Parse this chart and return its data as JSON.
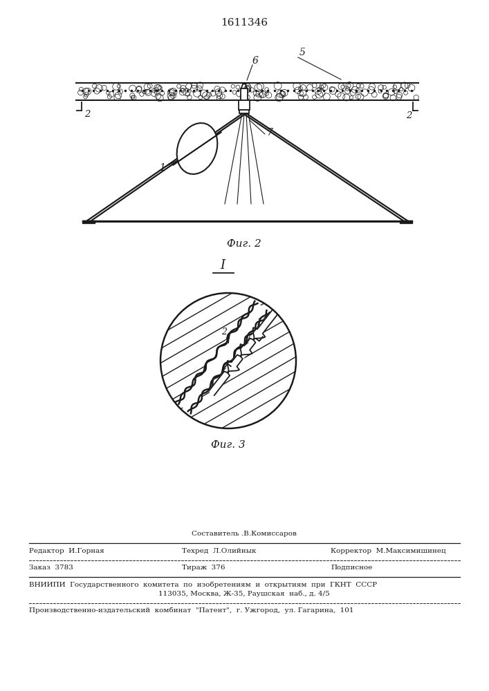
{
  "bg_color": "#ffffff",
  "line_color": "#1a1a1a",
  "patent_number": "1611346",
  "fig2_caption": "Фиг. 2",
  "fig3_caption": "Фиг. 3",
  "footer": {
    "sostavitel": "Составитель .B.Комиссаров",
    "redaktor": "Редактор  И.Горная",
    "tehred": "Техред  Л.Олийнык",
    "korrektor": "Корректор  М.Максимишинец",
    "zakaz": "Заказ  3783",
    "tirazh": "Тираж  376",
    "podpisnoe": "Подписное",
    "vniip1": "ВНИИПИ  Государственного  комитета  по  изобретениям  и  открытиям  при  ГКНТ  СССР",
    "vniip2": "113035, Москва, Ж-35, Раушская  наб., д. 4/5",
    "proizv": "Производственно-издательский  комбинат  \"Патент\",  г. Ужгород,  ул. Гагарина,  101"
  }
}
